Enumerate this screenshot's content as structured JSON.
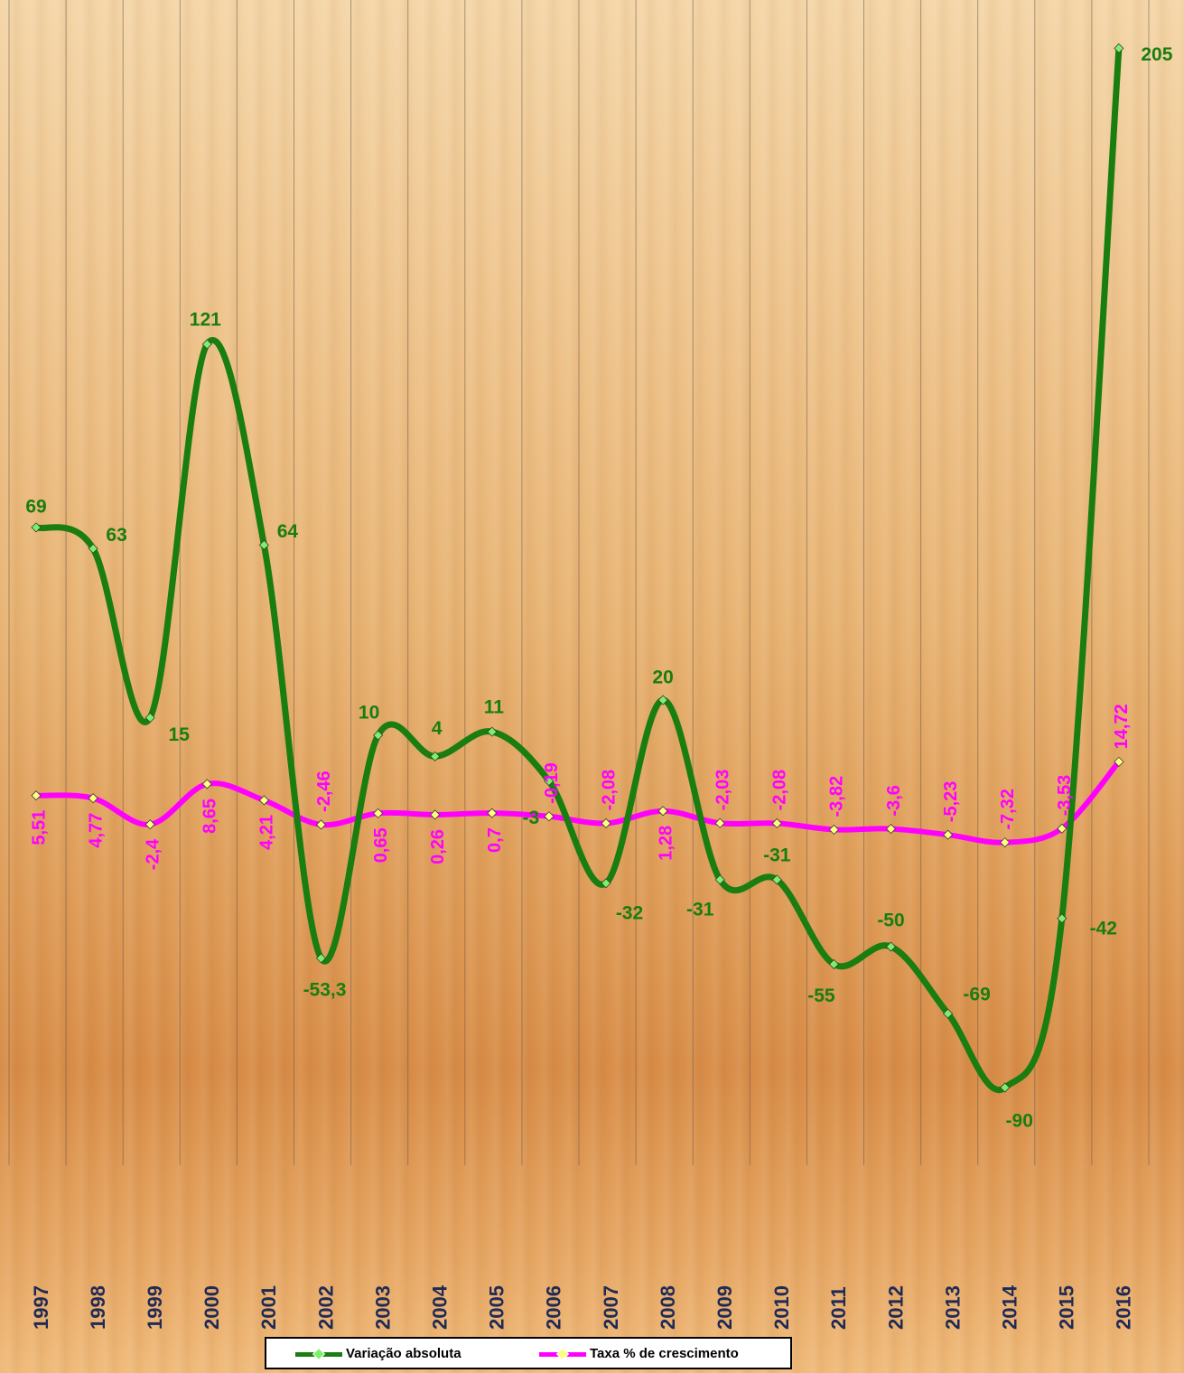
{
  "chart_data": {
    "type": "line",
    "categories": [
      "1997",
      "1998",
      "1999",
      "2000",
      "2001",
      "2002",
      "2003",
      "2004",
      "2005",
      "2006",
      "2007",
      "2008",
      "2009",
      "2010",
      "2011",
      "2012",
      "2013",
      "2014",
      "2015",
      "2016"
    ],
    "series": [
      {
        "name": "Variação absoluta",
        "color": "#1a7d0f",
        "marker_color": "#7cf06a",
        "values": [
          69,
          63,
          15,
          121,
          64,
          -53.3,
          10,
          4,
          11,
          -3,
          -32,
          20,
          -31,
          -31,
          -55,
          -50,
          -69,
          -90,
          -42,
          205
        ],
        "labels": [
          "69",
          "63",
          "15",
          "121",
          "64",
          "-53,3",
          "10",
          "4",
          "11",
          "-3",
          "-32",
          "20",
          "-31",
          "-31",
          "-55",
          "-50",
          "-69",
          "-90",
          "-42",
          "205"
        ]
      },
      {
        "name": "Taxa % de crescimento",
        "color": "#ff00ff",
        "marker_color": "#ffff80",
        "values": [
          5.51,
          4.77,
          -2.4,
          8.65,
          4.21,
          -2.46,
          0.65,
          0.26,
          0.7,
          -0.19,
          -2.08,
          1.28,
          -2.03,
          -2.08,
          -3.82,
          -3.6,
          -5.23,
          -7.32,
          -3.53,
          14.72
        ],
        "labels": [
          "5,51",
          "4,77",
          "-2,4",
          "8,65",
          "4,21",
          "-2,46",
          "0,65",
          "0,26",
          "0,7",
          "-0,19",
          "-2,08",
          "1,28",
          "-2,03",
          "-2,08",
          "-3,82",
          "-3,6",
          "-5,23",
          "-7,32",
          "-3,53",
          "14,72"
        ]
      }
    ],
    "ylim": [
      -100,
      230
    ],
    "smooth": true,
    "grid": "vertical",
    "legend_position": "bottom-center",
    "title": "",
    "xlabel": "",
    "ylabel": ""
  },
  "legend": {
    "item1": "Variação absoluta",
    "item2": "Taxa % de crescimento"
  }
}
